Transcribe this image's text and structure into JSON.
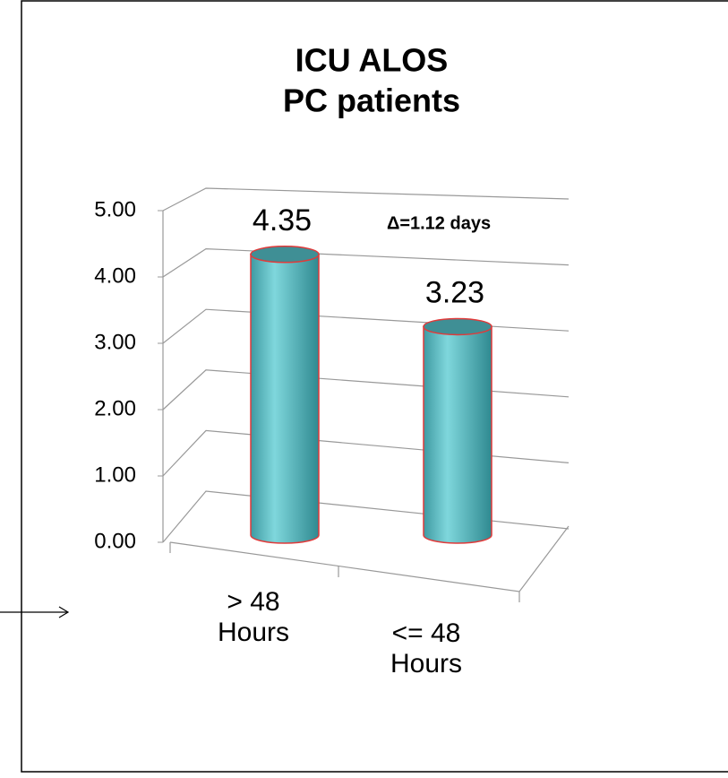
{
  "chart_data": {
    "type": "bar3d",
    "title": [
      "ICU ALOS",
      "PC patients"
    ],
    "categories": [
      "> 48 Hours",
      "<= 48 Hours"
    ],
    "values": [
      4.35,
      3.23
    ],
    "color": "#5fc3c9",
    "outline": "#e03a3a",
    "annotation": "Δ=1.12 days",
    "annotation_color": "#e8191e",
    "ylim": [
      0,
      5
    ],
    "yticks": [
      {
        "value": 0,
        "label": "0.00"
      },
      {
        "value": 1,
        "label": "1.00"
      },
      {
        "value": 2,
        "label": "2.00"
      },
      {
        "value": 3,
        "label": "3.00"
      },
      {
        "value": 4,
        "label": "4.00"
      },
      {
        "value": 5,
        "label": "5.00"
      }
    ],
    "grid": true
  }
}
